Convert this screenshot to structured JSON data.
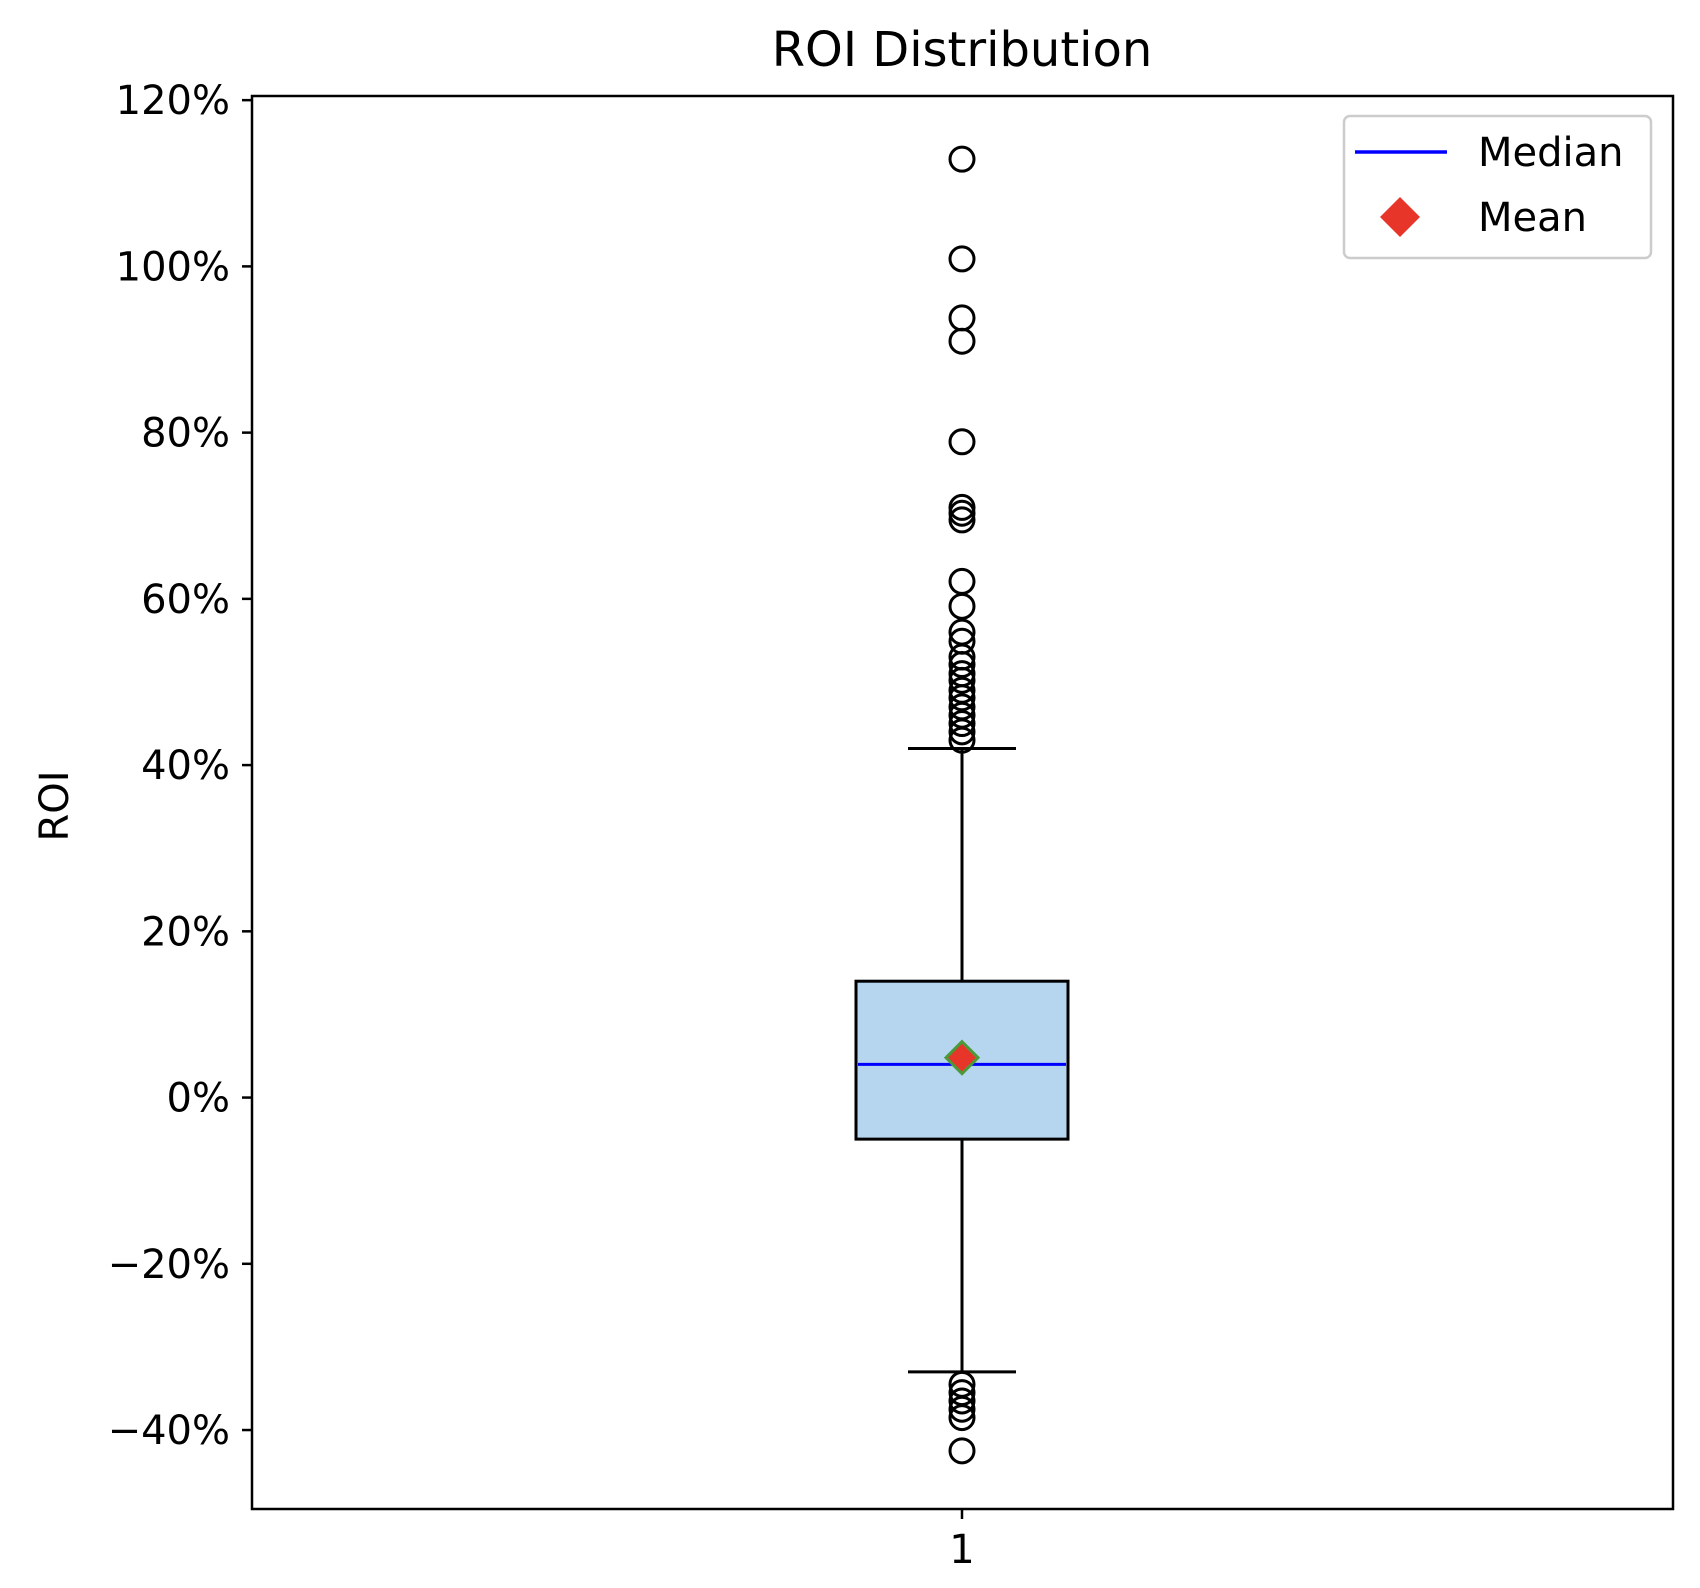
{
  "chart_data": {
    "type": "box",
    "title": "ROI Distribution",
    "xlabel": "",
    "ylabel": "ROI",
    "categories": [
      "1"
    ],
    "ylim": [
      -49.5,
      120.5
    ],
    "yticks": [
      -40,
      -20,
      0,
      20,
      40,
      60,
      80,
      100,
      120
    ],
    "ytick_labels": [
      "−40%",
      "−20%",
      "0%",
      "20%",
      "40%",
      "60%",
      "80%",
      "100%",
      "120%"
    ],
    "grid": false,
    "legend": {
      "position": "top-right",
      "entries": [
        {
          "label": "Median",
          "marker": "line",
          "color": "#0000ff"
        },
        {
          "label": "Mean",
          "marker": "diamond",
          "color": "#e8352a"
        }
      ]
    },
    "box": {
      "whisker_high": 42,
      "q3": 14,
      "median": 4,
      "mean": 4.8,
      "q1": -5,
      "whisker_low": -33,
      "fill_color": "#b6d5ee",
      "median_color": "#0000ff",
      "mean_color": "#e8352a",
      "mean_edge_color": "#4a9a3a"
    },
    "outliers": [
      112.9,
      100.9,
      93.8,
      91.0,
      78.9,
      71.0,
      70.3,
      69.5,
      62.1,
      59.1,
      56.0,
      54.9,
      53.0,
      52.1,
      51.0,
      50.2,
      49.0,
      48.1,
      47.0,
      46.0,
      45.0,
      44.0,
      43.0,
      -34.5,
      -35.5,
      -36.5,
      -37.5,
      -38.5,
      -42.5
    ]
  }
}
